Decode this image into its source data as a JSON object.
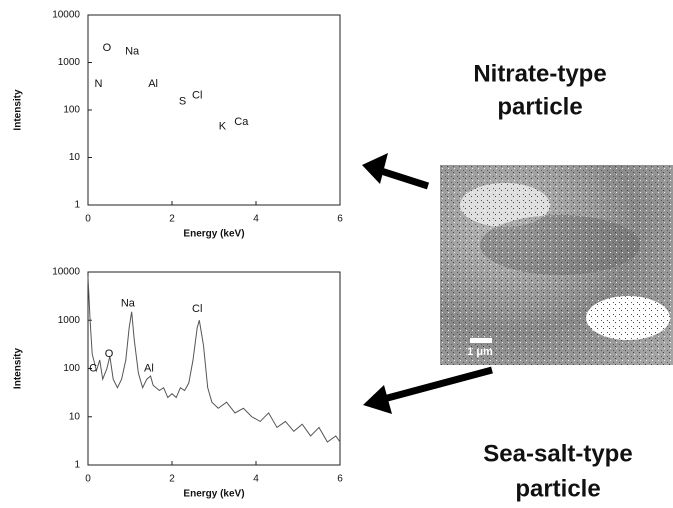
{
  "chart_data": [
    {
      "type": "line",
      "y_label": "Intensity",
      "x_label": "Energy (keV)",
      "xlim": [
        0,
        6
      ],
      "xticks": [
        0,
        2,
        4,
        6
      ],
      "ylim": [
        1,
        10000
      ],
      "yticks": [
        1,
        10,
        100,
        1000,
        10000
      ],
      "log_y": true,
      "x": [],
      "series": [],
      "annotations": [
        {
          "text": "O",
          "x": 0.45,
          "y": 2000
        },
        {
          "text": "Na",
          "x": 1.05,
          "y": 1700
        },
        {
          "text": "N",
          "x": 0.25,
          "y": 350
        },
        {
          "text": "Al",
          "x": 1.55,
          "y": 350
        },
        {
          "text": "S",
          "x": 2.25,
          "y": 150
        },
        {
          "text": "Cl",
          "x": 2.6,
          "y": 200
        },
        {
          "text": "K",
          "x": 3.2,
          "y": 45
        },
        {
          "text": "Ca",
          "x": 3.65,
          "y": 55
        }
      ]
    },
    {
      "type": "line",
      "y_label": "Intensity",
      "x_label": "Energy (keV)",
      "xlim": [
        0,
        6
      ],
      "xticks": [
        0,
        2,
        4,
        6
      ],
      "ylim": [
        1,
        10000
      ],
      "yticks": [
        1,
        10,
        100,
        1000,
        10000
      ],
      "log_y": true,
      "x": [
        0,
        0.05,
        0.1,
        0.2,
        0.28,
        0.35,
        0.45,
        0.52,
        0.6,
        0.7,
        0.8,
        0.9,
        0.98,
        1.04,
        1.1,
        1.2,
        1.3,
        1.4,
        1.49,
        1.55,
        1.7,
        1.8,
        1.9,
        2.0,
        2.1,
        2.2,
        2.3,
        2.4,
        2.5,
        2.6,
        2.65,
        2.75,
        2.85,
        2.95,
        3.1,
        3.3,
        3.5,
        3.7,
        3.9,
        4.1,
        4.3,
        4.5,
        4.7,
        4.9,
        5.1,
        5.3,
        5.5,
        5.7,
        5.9,
        6.0
      ],
      "series": [
        {
          "color": "#555555",
          "values": [
            8000,
            1000,
            200,
            90,
            150,
            60,
            100,
            180,
            60,
            40,
            60,
            150,
            700,
            1500,
            400,
            80,
            40,
            60,
            70,
            45,
            35,
            40,
            25,
            30,
            25,
            40,
            35,
            50,
            150,
            700,
            1000,
            300,
            40,
            20,
            15,
            20,
            12,
            15,
            10,
            8,
            12,
            6,
            8,
            5,
            7,
            4,
            6,
            3,
            4,
            3
          ]
        }
      ],
      "annotations": [
        {
          "text": "C",
          "x": 0.12,
          "y": 100
        },
        {
          "text": "O",
          "x": 0.5,
          "y": 200
        },
        {
          "text": "Na",
          "x": 0.95,
          "y": 2200
        },
        {
          "text": "Al",
          "x": 1.45,
          "y": 100
        },
        {
          "text": "Cl",
          "x": 2.6,
          "y": 1700
        }
      ]
    }
  ],
  "labels": {
    "nitrate": [
      "Nitrate-type",
      "particle"
    ],
    "seasalt": [
      "Sea-salt-type",
      "particle"
    ],
    "scale_bar": "1 μm"
  }
}
